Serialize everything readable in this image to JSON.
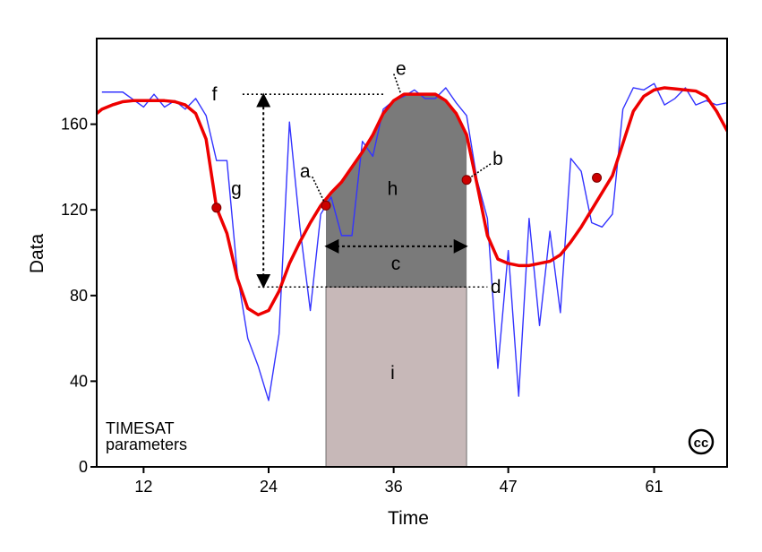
{
  "chart_data": {
    "type": "line",
    "title": "",
    "xlabel": "Time",
    "ylabel": "Data",
    "xlim": [
      7.5,
      68
    ],
    "ylim": [
      0,
      200
    ],
    "x_ticks": [
      12,
      24,
      36,
      47,
      61
    ],
    "y_ticks": [
      0,
      40,
      80,
      120,
      160
    ],
    "grid": false,
    "corner_text": [
      "TIMESAT",
      "parameters"
    ],
    "license_mark": "cc",
    "colors": {
      "raw": "#3333ff",
      "fitted": "#ee0000",
      "markers": "#cc0000",
      "region_h": "#7a7a7a",
      "region_i": "#c7b8b8"
    },
    "series": [
      {
        "role": "raw",
        "x": [
          8,
          10,
          12,
          13,
          14,
          15,
          16,
          17,
          18,
          19,
          20,
          21,
          22,
          23,
          24,
          25,
          26,
          27,
          28,
          29,
          30,
          31,
          32,
          33,
          34,
          35,
          36,
          37,
          38,
          39,
          40,
          41,
          42,
          43,
          44,
          45,
          46,
          47,
          48,
          49,
          50,
          51,
          52,
          53,
          54,
          55,
          56,
          57,
          58,
          59,
          60,
          61,
          62,
          63,
          64,
          65,
          66,
          67,
          68
        ],
        "y": [
          175,
          175,
          168,
          174,
          168,
          171,
          167,
          172,
          164,
          143,
          143,
          90,
          60,
          47,
          31,
          62,
          161,
          112,
          73,
          118,
          126,
          108,
          108,
          152,
          145,
          167,
          171,
          173,
          176,
          172,
          172,
          177,
          170,
          164,
          134,
          116,
          46,
          101,
          33,
          116,
          66,
          110,
          72,
          144,
          138,
          114,
          112,
          118,
          167,
          177,
          176,
          179,
          169,
          172,
          177,
          169,
          171,
          169,
          170
        ]
      },
      {
        "role": "fitted",
        "x": [
          7.5,
          8,
          9,
          10,
          11,
          12,
          13,
          14,
          15,
          16,
          17,
          18,
          19,
          20,
          21,
          22,
          23,
          24,
          25,
          26,
          27,
          28,
          29,
          30,
          31,
          32,
          33,
          34,
          35,
          36,
          37,
          38,
          39,
          40,
          41,
          42,
          43,
          44,
          45,
          46,
          47,
          48,
          49,
          50,
          51,
          52,
          53,
          54,
          55,
          56,
          57,
          58,
          59,
          60,
          61,
          62,
          63,
          64,
          65,
          66,
          67,
          68
        ],
        "y": [
          165,
          167,
          169,
          170.5,
          171,
          171,
          171,
          171,
          170.5,
          169,
          165,
          153,
          121,
          109,
          88,
          74,
          71,
          73,
          82,
          95,
          105,
          114,
          122,
          128,
          133,
          140,
          147,
          155,
          165,
          171,
          174,
          174,
          174,
          174,
          171,
          165,
          155,
          132,
          108,
          97,
          95,
          94,
          94,
          95,
          96,
          99,
          105,
          112,
          120,
          128,
          136,
          151,
          166,
          173,
          176,
          177,
          176.5,
          176,
          175.5,
          173,
          166,
          157
        ]
      }
    ],
    "markers": [
      {
        "x": 19,
        "y": 121
      },
      {
        "x": 29.5,
        "y": 122
      },
      {
        "x": 43,
        "y": 134
      },
      {
        "x": 55.5,
        "y": 135
      }
    ],
    "regions": [
      {
        "id": "h",
        "label": "h",
        "x_start": 29.5,
        "x_end": 43,
        "y_base": 84
      },
      {
        "id": "i",
        "label": "i",
        "x_start": 29.5,
        "x_end": 43,
        "y_base": 0,
        "y_top": 84
      }
    ],
    "annotations": [
      {
        "label": "a",
        "x": 27.5,
        "y": 138,
        "arrow_to": {
          "x": 29.5,
          "y": 122
        }
      },
      {
        "label": "b",
        "x": 46,
        "y": 144,
        "arrow_to": {
          "x": 43,
          "y": 134
        }
      },
      {
        "label": "c",
        "x": 36.2,
        "y": 95
      },
      {
        "label": "d",
        "x": 45.8,
        "y": 84
      },
      {
        "label": "e",
        "x": 36.7,
        "y": 186,
        "arrow_to": {
          "x": 36.7,
          "y": 174
        }
      },
      {
        "label": "f",
        "x": 18.8,
        "y": 174
      },
      {
        "label": "g",
        "x": 20.9,
        "y": 130
      },
      {
        "label": "h",
        "x": 35.9,
        "y": 130
      },
      {
        "label": "i",
        "x": 35.9,
        "y": 44
      }
    ],
    "reference_lines": [
      {
        "id": "f-level",
        "y": 174,
        "x_start": 21.5,
        "x_end": 35
      },
      {
        "id": "d-level",
        "y": 84,
        "x_start": 23,
        "x_end": 45
      }
    ],
    "arrows": [
      {
        "id": "g-arrow",
        "orientation": "vertical",
        "x": 23.5,
        "y_start": 84,
        "y_end": 174
      },
      {
        "id": "c-arrow",
        "orientation": "horizontal",
        "y": 103,
        "x_start": 29.5,
        "x_end": 43
      }
    ]
  }
}
